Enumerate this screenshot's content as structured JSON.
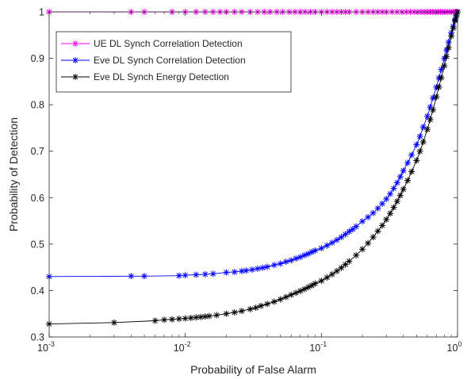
{
  "chart_data": {
    "type": "line",
    "title": "",
    "xlabel": "Probability of False Alarm",
    "ylabel": "Probability of Detection",
    "xscale": "log",
    "xlim": [
      0.001,
      1
    ],
    "ylim": [
      0.3,
      1
    ],
    "grid": false,
    "legend_placement": "top-left",
    "x_ticks": [
      {
        "value": 0.001,
        "base": "10",
        "exp": "-3"
      },
      {
        "value": 0.01,
        "base": "10",
        "exp": "-2"
      },
      {
        "value": 0.1,
        "base": "10",
        "exp": "-1"
      },
      {
        "value": 1,
        "base": "10",
        "exp": "0"
      }
    ],
    "y_ticks": [
      {
        "value": 0.3,
        "label": "0.3"
      },
      {
        "value": 0.4,
        "label": "0.4"
      },
      {
        "value": 0.5,
        "label": "0.5"
      },
      {
        "value": 0.6,
        "label": "0.6"
      },
      {
        "value": 0.7,
        "label": "0.7"
      },
      {
        "value": 0.8,
        "label": "0.8"
      },
      {
        "value": 0.9,
        "label": "0.9"
      },
      {
        "value": 1,
        "label": "1"
      }
    ],
    "series": [
      {
        "name": "UE DL Synch Correlation Detection",
        "color": "#ff00ff",
        "marker": "asterisk",
        "x": [
          0.001,
          0.004,
          0.005,
          0.008,
          0.01,
          0.012,
          0.014,
          0.016,
          0.018,
          0.02,
          0.023,
          0.026,
          0.03,
          0.034,
          0.038,
          0.042,
          0.047,
          0.052,
          0.058,
          0.064,
          0.07,
          0.076,
          0.083,
          0.09,
          0.1,
          0.11,
          0.12,
          0.13,
          0.14,
          0.15,
          0.16,
          0.18,
          0.2,
          0.22,
          0.24,
          0.26,
          0.28,
          0.3,
          0.33,
          0.36,
          0.39,
          0.42,
          0.45,
          0.48,
          0.51,
          0.54,
          0.57,
          0.6,
          0.63,
          0.66,
          0.69,
          0.72,
          0.75,
          0.78,
          0.81,
          0.84,
          0.87,
          0.9,
          0.93,
          0.96,
          0.98,
          1.0
        ],
        "y": [
          1,
          1,
          1,
          1,
          1,
          1,
          1,
          1,
          1,
          1,
          1,
          1,
          1,
          1,
          1,
          1,
          1,
          1,
          1,
          1,
          1,
          1,
          1,
          1,
          1,
          1,
          1,
          1,
          1,
          1,
          1,
          1,
          1,
          1,
          1,
          1,
          1,
          1,
          1,
          1,
          1,
          1,
          1,
          1,
          1,
          1,
          1,
          1,
          1,
          1,
          1,
          1,
          1,
          1,
          1,
          1,
          1,
          1,
          1,
          1,
          1,
          1
        ]
      },
      {
        "name": "Eve DL Synch Correlation Detection",
        "color": "#0000ff",
        "marker": "asterisk",
        "x": [
          0.001,
          0.004,
          0.005,
          0.009,
          0.01,
          0.012,
          0.014,
          0.016,
          0.02,
          0.023,
          0.026,
          0.028,
          0.031,
          0.034,
          0.037,
          0.04,
          0.045,
          0.05,
          0.055,
          0.06,
          0.065,
          0.07,
          0.075,
          0.08,
          0.085,
          0.09,
          0.1,
          0.11,
          0.12,
          0.13,
          0.14,
          0.15,
          0.16,
          0.17,
          0.18,
          0.2,
          0.22,
          0.24,
          0.26,
          0.28,
          0.3,
          0.32,
          0.34,
          0.36,
          0.38,
          0.4,
          0.43,
          0.46,
          0.5,
          0.53,
          0.56,
          0.6,
          0.63,
          0.66,
          0.7,
          0.73,
          0.76,
          0.8,
          0.83,
          0.86,
          0.9,
          0.93,
          0.96,
          0.98,
          1.0
        ],
        "y": [
          0.43,
          0.431,
          0.431,
          0.432,
          0.433,
          0.434,
          0.435,
          0.436,
          0.439,
          0.44,
          0.442,
          0.443,
          0.445,
          0.447,
          0.449,
          0.451,
          0.455,
          0.458,
          0.462,
          0.465,
          0.469,
          0.472,
          0.476,
          0.479,
          0.483,
          0.486,
          0.491,
          0.497,
          0.503,
          0.509,
          0.515,
          0.521,
          0.527,
          0.532,
          0.538,
          0.549,
          0.558,
          0.567,
          0.577,
          0.587,
          0.597,
          0.608,
          0.62,
          0.632,
          0.645,
          0.658,
          0.675,
          0.692,
          0.714,
          0.732,
          0.752,
          0.775,
          0.795,
          0.815,
          0.838,
          0.858,
          0.876,
          0.9,
          0.918,
          0.935,
          0.955,
          0.969,
          0.983,
          0.992,
          1.0
        ]
      },
      {
        "name": "Eve DL Synch Energy Detection",
        "color": "#000000",
        "marker": "asterisk",
        "x": [
          0.001,
          0.003,
          0.006,
          0.007,
          0.008,
          0.009,
          0.01,
          0.011,
          0.012,
          0.013,
          0.014,
          0.015,
          0.017,
          0.02,
          0.023,
          0.026,
          0.03,
          0.033,
          0.036,
          0.04,
          0.045,
          0.05,
          0.055,
          0.06,
          0.065,
          0.07,
          0.075,
          0.08,
          0.085,
          0.09,
          0.1,
          0.11,
          0.12,
          0.13,
          0.14,
          0.15,
          0.16,
          0.18,
          0.2,
          0.22,
          0.24,
          0.26,
          0.28,
          0.3,
          0.32,
          0.34,
          0.36,
          0.38,
          0.4,
          0.43,
          0.46,
          0.5,
          0.53,
          0.56,
          0.6,
          0.63,
          0.66,
          0.7,
          0.73,
          0.76,
          0.8,
          0.83,
          0.86,
          0.9,
          0.93,
          0.96,
          0.98,
          1.0
        ],
        "y": [
          0.328,
          0.331,
          0.335,
          0.337,
          0.338,
          0.339,
          0.34,
          0.341,
          0.342,
          0.343,
          0.344,
          0.345,
          0.347,
          0.35,
          0.353,
          0.356,
          0.36,
          0.363,
          0.367,
          0.371,
          0.376,
          0.381,
          0.386,
          0.391,
          0.395,
          0.399,
          0.403,
          0.407,
          0.411,
          0.415,
          0.421,
          0.428,
          0.435,
          0.442,
          0.449,
          0.456,
          0.463,
          0.476,
          0.489,
          0.502,
          0.515,
          0.528,
          0.54,
          0.553,
          0.566,
          0.579,
          0.592,
          0.605,
          0.618,
          0.637,
          0.656,
          0.68,
          0.7,
          0.72,
          0.747,
          0.768,
          0.789,
          0.817,
          0.838,
          0.858,
          0.884,
          0.904,
          0.923,
          0.948,
          0.965,
          0.981,
          0.991,
          1.0
        ]
      }
    ]
  }
}
